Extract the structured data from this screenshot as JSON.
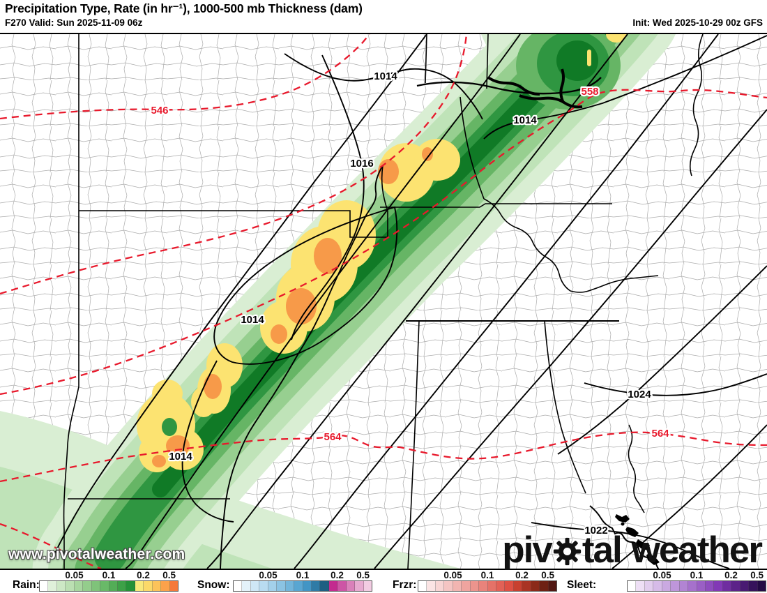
{
  "header": {
    "title": "Precipitation Type, Rate (in hr⁻¹), 1000-500 mb Thickness (dam)",
    "valid": "F270 Valid: Sun 2025-11-09 06z",
    "init": "Init: Wed 2025-10-29 00z GFS"
  },
  "map": {
    "watermark": "www.pivotalweather.com",
    "logo": {
      "part1": "piv",
      "part2": "tal",
      "part3": "weather",
      "gear_icon": "gear-icon"
    },
    "pressure_labels": [
      "1014",
      "1014",
      "1016",
      "1014",
      "1014",
      "1024",
      "1022"
    ],
    "thickness_labels": [
      "546",
      "558",
      "564",
      "564"
    ],
    "colors": {
      "pressure_contour": "#000000",
      "thickness_contour": "#e8192c",
      "rain_light": "#d9eed3",
      "rain_dark": "#107a26",
      "rain_heavy_yellow": "#fce371",
      "rain_heavy_orange": "#f79a49"
    }
  },
  "legend": {
    "groups": [
      {
        "label": "Rain:",
        "ticks": [
          "0.05",
          "0.1",
          "0.2",
          "0.5"
        ],
        "colors": [
          "#ffffff",
          "#e0f1da",
          "#cde8c5",
          "#bbdfb2",
          "#a8d69f",
          "#94cd8c",
          "#7fc37a",
          "#69b968",
          "#53ad57",
          "#3da147",
          "#259238",
          "#f8e97b",
          "#fbd969",
          "#fcc35a",
          "#fba24b",
          "#f5793a"
        ]
      },
      {
        "label": "Snow:",
        "ticks": [
          "0.05",
          "0.1",
          "0.2",
          "0.5"
        ],
        "colors": [
          "#ffffff",
          "#e4f2fa",
          "#cfe7f6",
          "#b9dcf1",
          "#a3d0ea",
          "#8bc3e3",
          "#72b5db",
          "#59a6d2",
          "#4295c5",
          "#2f7ba6",
          "#1d5f82",
          "#c32b8f",
          "#cd55a5",
          "#da80ba",
          "#e7aad0",
          "#f2cce2"
        ]
      },
      {
        "label": "Frzr:",
        "ticks": [
          "0.05",
          "0.1",
          "0.2",
          "0.5"
        ],
        "colors": [
          "#ffffff",
          "#fbe4e4",
          "#f8d5d4",
          "#f5c5c3",
          "#f2b5b1",
          "#efa49f",
          "#ec948d",
          "#e9837b",
          "#e57268",
          "#e26156",
          "#de5043",
          "#c8402f",
          "#a93423",
          "#8b2a19",
          "#6e2013",
          "#521712"
        ]
      },
      {
        "label": "Sleet:",
        "ticks": [
          "0.05",
          "0.1",
          "0.2",
          "0.5"
        ],
        "colors": [
          "#ffffff",
          "#eedff5",
          "#e2cdee",
          "#d6bbe8",
          "#caa9e1",
          "#be96da",
          "#b284d3",
          "#a671cc",
          "#9a5fc5",
          "#8e4cbe",
          "#8239b6",
          "#6f2da0",
          "#5c2389",
          "#491a72",
          "#36125b",
          "#230a44"
        ]
      }
    ]
  }
}
